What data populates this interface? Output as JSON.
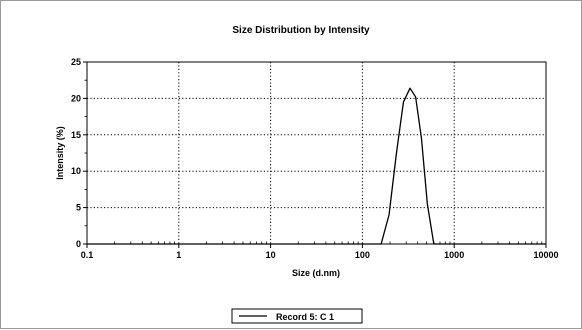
{
  "chart_data": {
    "type": "line",
    "title": "Size Distribution by Intensity",
    "xlabel": "Size (d.nm)",
    "ylabel": "Intensity (%)",
    "x_scale": "log",
    "xlim": [
      0.1,
      10000
    ],
    "ylim": [
      0,
      25
    ],
    "x_ticks": [
      0.1,
      1,
      10,
      100,
      1000,
      10000
    ],
    "x_tick_labels": [
      "0.1",
      "1",
      "10",
      "100",
      "1000",
      "10000"
    ],
    "y_ticks": [
      0,
      5,
      10,
      15,
      20,
      25
    ],
    "y_tick_labels": [
      "0",
      "5",
      "10",
      "15",
      "20",
      "25"
    ],
    "grid": true,
    "legend_position": "bottom-center",
    "series": [
      {
        "name": "Record 5: C 1",
        "color": "#000000",
        "x": [
          0.1,
          0.4,
          1,
          10,
          100,
          160,
          195,
          235,
          280,
          330,
          380,
          440,
          510,
          600,
          10000
        ],
        "y": [
          0,
          0,
          0,
          0,
          0,
          0,
          4.0,
          12.5,
          19.5,
          21.4,
          20.2,
          14.5,
          5.5,
          0,
          0
        ]
      }
    ]
  }
}
